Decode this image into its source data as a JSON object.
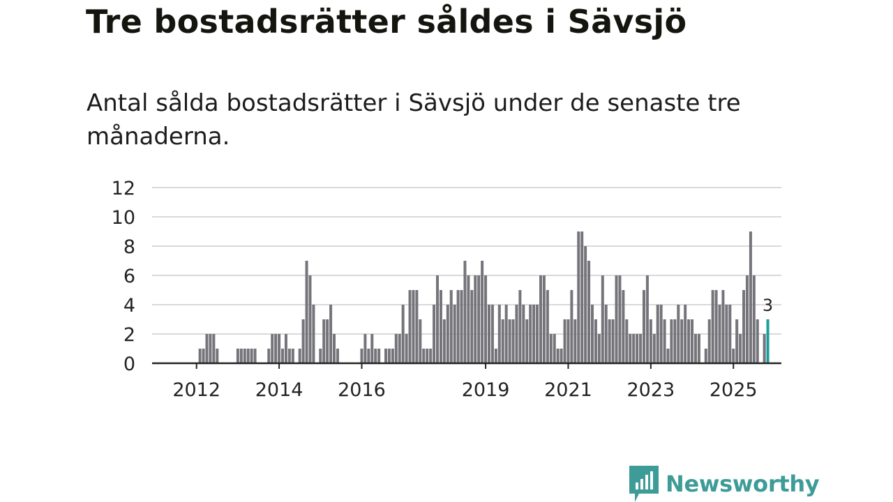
{
  "header": {
    "title": "Tre bostadsrätter såldes i Sävsjö",
    "subtitle": "Antal sålda bostadsrätter i Sävsjö under de senaste tre månaderna."
  },
  "brand": {
    "name": "Newsworthy",
    "color": "#3e9c98"
  },
  "colors": {
    "bar": "#75747a",
    "highlight": "#1a9e9c",
    "grid": "#d9d9d9",
    "axis": "#222222"
  },
  "chart_data": {
    "type": "bar",
    "title": "Antal sålda bostadsrätter i Sävsjö",
    "xlabel": "",
    "ylabel": "",
    "ylim": [
      0,
      12
    ],
    "yticks": [
      0,
      2,
      4,
      6,
      8,
      10,
      12
    ],
    "grid": true,
    "x_start": "2011-01",
    "x_ticks": [
      {
        "label": "2012",
        "index": 12
      },
      {
        "label": "2014",
        "index": 36
      },
      {
        "label": "2016",
        "index": 60
      },
      {
        "label": "2019",
        "index": 96
      },
      {
        "label": "2021",
        "index": 120
      },
      {
        "label": "2023",
        "index": 144
      },
      {
        "label": "2025",
        "index": 168
      }
    ],
    "values": [
      0,
      0,
      0,
      0,
      0,
      0,
      0,
      0,
      0,
      0,
      0,
      0,
      0,
      1,
      1,
      2,
      2,
      2,
      1,
      0,
      0,
      0,
      0,
      0,
      1,
      1,
      1,
      1,
      1,
      1,
      0,
      0,
      0,
      1,
      2,
      2,
      2,
      1,
      2,
      1,
      1,
      0,
      1,
      3,
      7,
      6,
      4,
      0,
      1,
      3,
      3,
      4,
      2,
      1,
      0,
      0,
      0,
      0,
      0,
      0,
      1,
      2,
      1,
      2,
      1,
      1,
      0,
      1,
      1,
      1,
      2,
      2,
      4,
      2,
      5,
      5,
      5,
      3,
      1,
      1,
      1,
      4,
      6,
      5,
      3,
      4,
      5,
      4,
      5,
      5,
      7,
      6,
      5,
      6,
      6,
      7,
      6,
      4,
      4,
      1,
      4,
      3,
      4,
      3,
      3,
      4,
      5,
      4,
      3,
      4,
      4,
      4,
      6,
      6,
      5,
      2,
      2,
      1,
      1,
      3,
      3,
      5,
      3,
      9,
      9,
      8,
      7,
      4,
      3,
      2,
      6,
      4,
      3,
      3,
      6,
      6,
      5,
      3,
      2,
      2,
      2,
      2,
      5,
      6,
      3,
      2,
      4,
      4,
      3,
      1,
      3,
      3,
      4,
      3,
      4,
      3,
      3,
      2,
      2,
      0,
      1,
      3,
      5,
      5,
      4,
      5,
      4,
      4,
      1,
      3,
      2,
      5,
      6,
      9,
      6,
      3,
      0,
      2,
      3
    ],
    "highlight_index": 178,
    "highlight_label": "3"
  }
}
